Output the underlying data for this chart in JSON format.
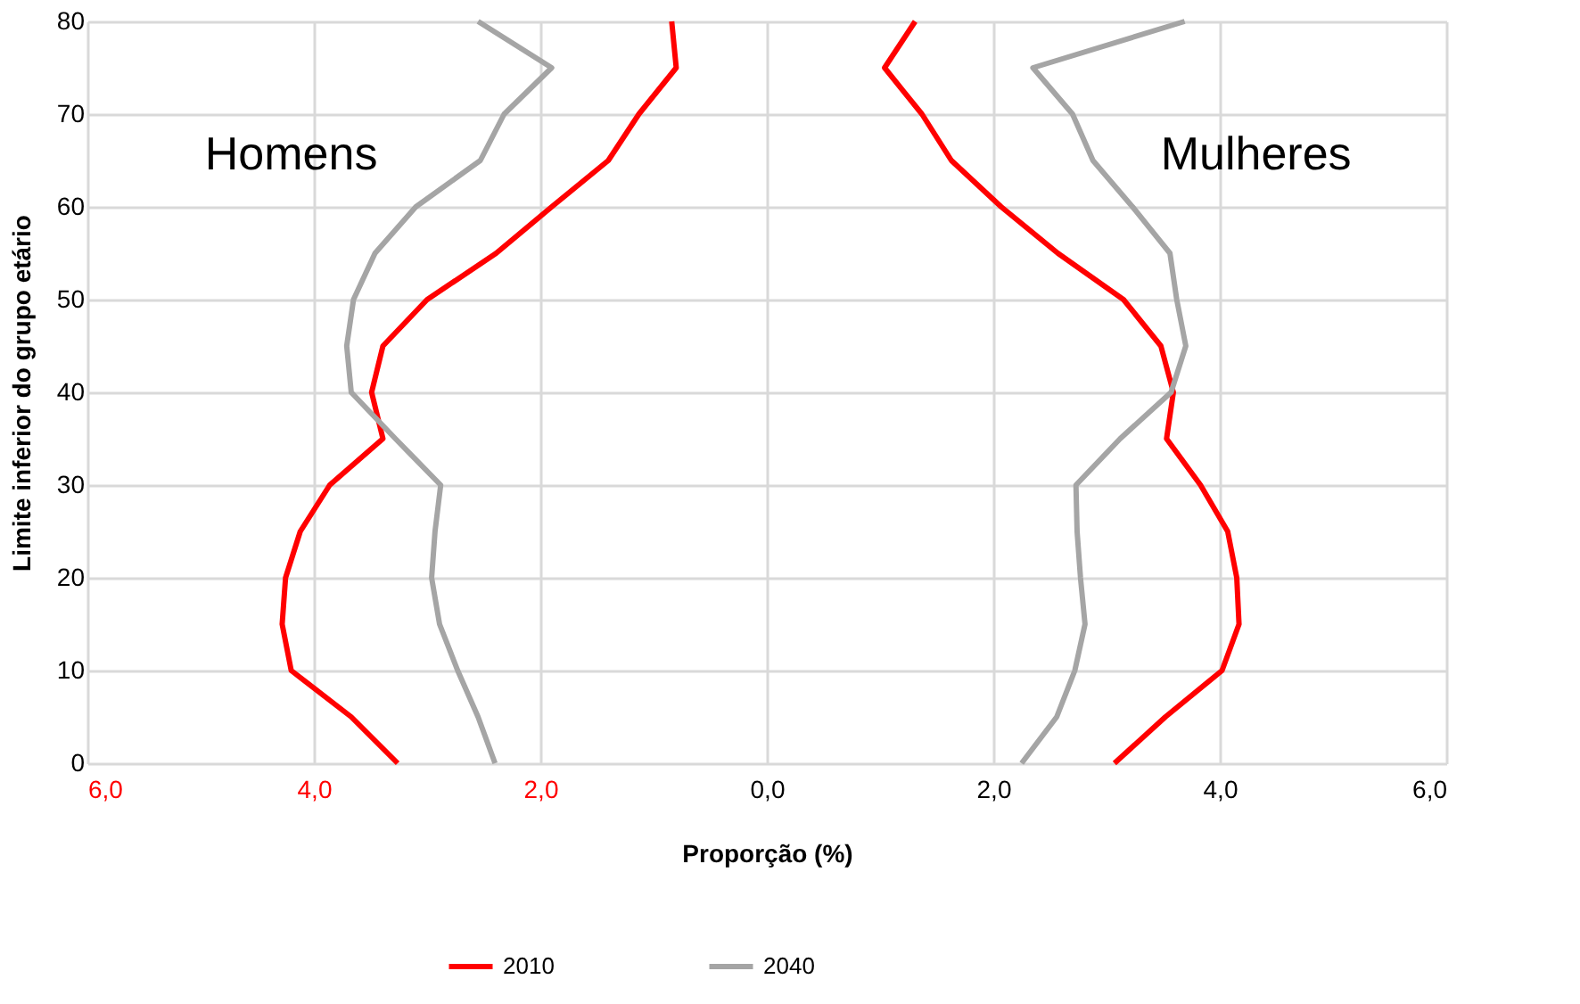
{
  "chart_data": {
    "type": "line",
    "xlabel": "Proporção (%)",
    "ylabel": "Limite inferior do grupo etário",
    "xlim": [
      -6,
      6
    ],
    "xticks": [
      {
        "value": -6,
        "label": "6,0"
      },
      {
        "value": -4,
        "label": "4,0"
      },
      {
        "value": -2,
        "label": "2,0"
      },
      {
        "value": 0,
        "label": "0,0"
      },
      {
        "value": 2,
        "label": "2,0"
      },
      {
        "value": 4,
        "label": "4,0"
      },
      {
        "value": 6,
        "label": "6,0"
      }
    ],
    "ylim": [
      0,
      80
    ],
    "yticks": [
      0,
      10,
      20,
      30,
      40,
      50,
      60,
      70,
      80
    ],
    "grid": true,
    "legend": "bottom",
    "line_style": "solid",
    "annotations": [
      "Homens",
      "Mulheres"
    ],
    "series": [
      {
        "name": "2010",
        "color": "#ff0000",
        "x": [
          -3.26,
          -3.67,
          -4.2,
          -4.28,
          -4.25,
          -4.12,
          -3.86,
          -3.39,
          -3.49,
          -3.39,
          -3.0,
          -2.39,
          -1.9,
          -1.4,
          -1.13,
          -0.8,
          -0.84,
          null,
          3.07,
          3.52,
          4.02,
          4.17,
          4.15,
          4.07,
          3.83,
          3.53,
          3.59,
          3.48,
          3.15,
          2.57,
          2.07,
          1.63,
          1.37,
          1.04,
          1.31
        ],
        "values": [
          0,
          5,
          10,
          15,
          20,
          25,
          30,
          35,
          40,
          45,
          50,
          55,
          60,
          65,
          70,
          75,
          80,
          null,
          0,
          5,
          10,
          15,
          20,
          25,
          30,
          35,
          40,
          45,
          50,
          55,
          60,
          65,
          70,
          75,
          80
        ]
      },
      {
        "name": "2040",
        "color": "#a5a5a5",
        "x": [
          -2.4,
          -2.55,
          -2.73,
          -2.89,
          -2.96,
          -2.93,
          -2.88,
          -3.28,
          -3.67,
          -3.71,
          -3.65,
          -3.46,
          -3.1,
          -2.53,
          -2.32,
          -1.9,
          -2.55,
          null,
          2.25,
          2.56,
          2.72,
          2.81,
          2.77,
          2.74,
          2.73,
          3.12,
          3.57,
          3.7,
          3.62,
          3.56,
          3.23,
          2.88,
          2.7,
          2.35,
          3.69
        ],
        "values": [
          0,
          5,
          10,
          15,
          20,
          25,
          30,
          35,
          40,
          45,
          50,
          55,
          60,
          65,
          70,
          75,
          80,
          null,
          0,
          5,
          10,
          15,
          20,
          25,
          30,
          35,
          40,
          45,
          50,
          55,
          60,
          65,
          70,
          75,
          80
        ]
      }
    ]
  }
}
